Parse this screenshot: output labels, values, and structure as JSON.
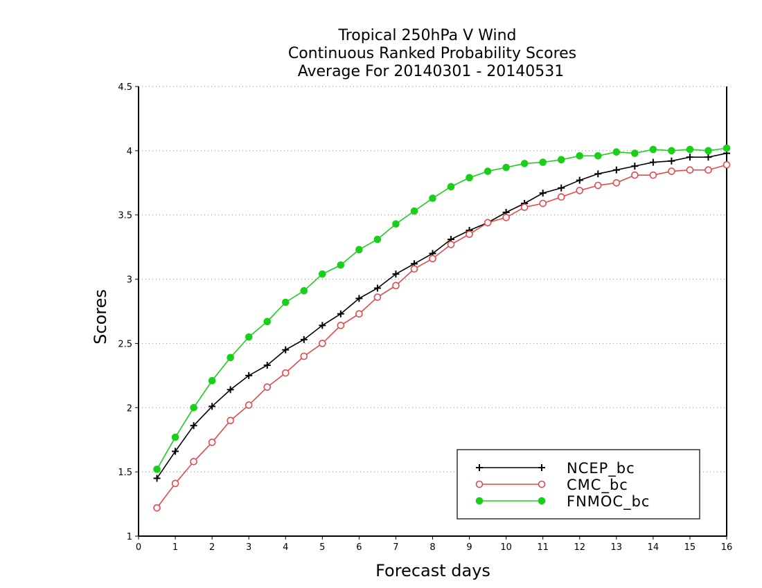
{
  "chart_data": {
    "type": "line",
    "title_lines": [
      "Tropical 250hPa V Wind",
      "Continuous Ranked Probability Scores",
      "Average For 20140301 - 20140531"
    ],
    "xlabel": "Forecast days",
    "ylabel": "Scores",
    "xlim": [
      0,
      16
    ],
    "ylim": [
      1,
      4.5
    ],
    "xticks": [
      "0",
      "1",
      "2",
      "3",
      "4",
      "5",
      "6",
      "7",
      "8",
      "9",
      "10",
      "11",
      "12",
      "13",
      "14",
      "15",
      "16"
    ],
    "yticks": [
      "1",
      "1.5",
      "2",
      "2.5",
      "3",
      "3.5",
      "4",
      "4.5"
    ],
    "grid": "horizontal-dotted",
    "legend_position": "bottom-right",
    "x": [
      0.5,
      1,
      1.5,
      2,
      2.5,
      3,
      3.5,
      4,
      4.5,
      5,
      5.5,
      6,
      6.5,
      7,
      7.5,
      8,
      8.5,
      9,
      9.5,
      10,
      10.5,
      11,
      11.5,
      12,
      12.5,
      13,
      13.5,
      14,
      14.5,
      15,
      15.5,
      16
    ],
    "series": [
      {
        "name": "NCEP_bc",
        "color": "#000000",
        "marker": "plus",
        "values": [
          1.45,
          1.66,
          1.86,
          2.01,
          2.14,
          2.25,
          2.33,
          2.45,
          2.53,
          2.64,
          2.73,
          2.85,
          2.93,
          3.04,
          3.12,
          3.2,
          3.31,
          3.38,
          3.44,
          3.52,
          3.59,
          3.67,
          3.71,
          3.77,
          3.82,
          3.85,
          3.88,
          3.91,
          3.92,
          3.95,
          3.95,
          3.98
        ]
      },
      {
        "name": "CMC_bc",
        "color": "#e8474a",
        "marker": "open-circle",
        "values": [
          1.22,
          1.41,
          1.58,
          1.73,
          1.9,
          2.02,
          2.16,
          2.27,
          2.4,
          2.5,
          2.64,
          2.73,
          2.86,
          2.95,
          3.08,
          3.16,
          3.27,
          3.35,
          3.44,
          3.48,
          3.56,
          3.59,
          3.64,
          3.69,
          3.73,
          3.75,
          3.81,
          3.81,
          3.84,
          3.85,
          3.85,
          3.89
        ]
      },
      {
        "name": "FNMOC_bc",
        "color": "#18d018",
        "marker": "filled-circle",
        "values": [
          1.52,
          1.77,
          2.0,
          2.21,
          2.39,
          2.55,
          2.67,
          2.82,
          2.91,
          3.04,
          3.11,
          3.23,
          3.31,
          3.43,
          3.53,
          3.63,
          3.72,
          3.79,
          3.84,
          3.87,
          3.9,
          3.91,
          3.93,
          3.96,
          3.96,
          3.99,
          3.98,
          4.01,
          4.0,
          4.01,
          4.0,
          4.02
        ]
      }
    ]
  }
}
